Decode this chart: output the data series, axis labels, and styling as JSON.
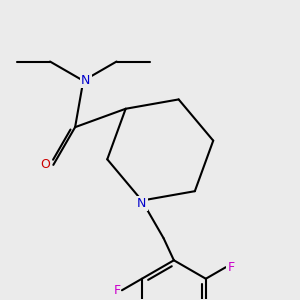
{
  "background_color": "#ebebeb",
  "bond_color": "#000000",
  "atom_colors": {
    "N": "#0000cc",
    "O": "#cc0000",
    "F": "#cc00cc",
    "C": "#000000"
  },
  "figsize": [
    3.0,
    3.0
  ],
  "dpi": 100,
  "lw": 1.5
}
